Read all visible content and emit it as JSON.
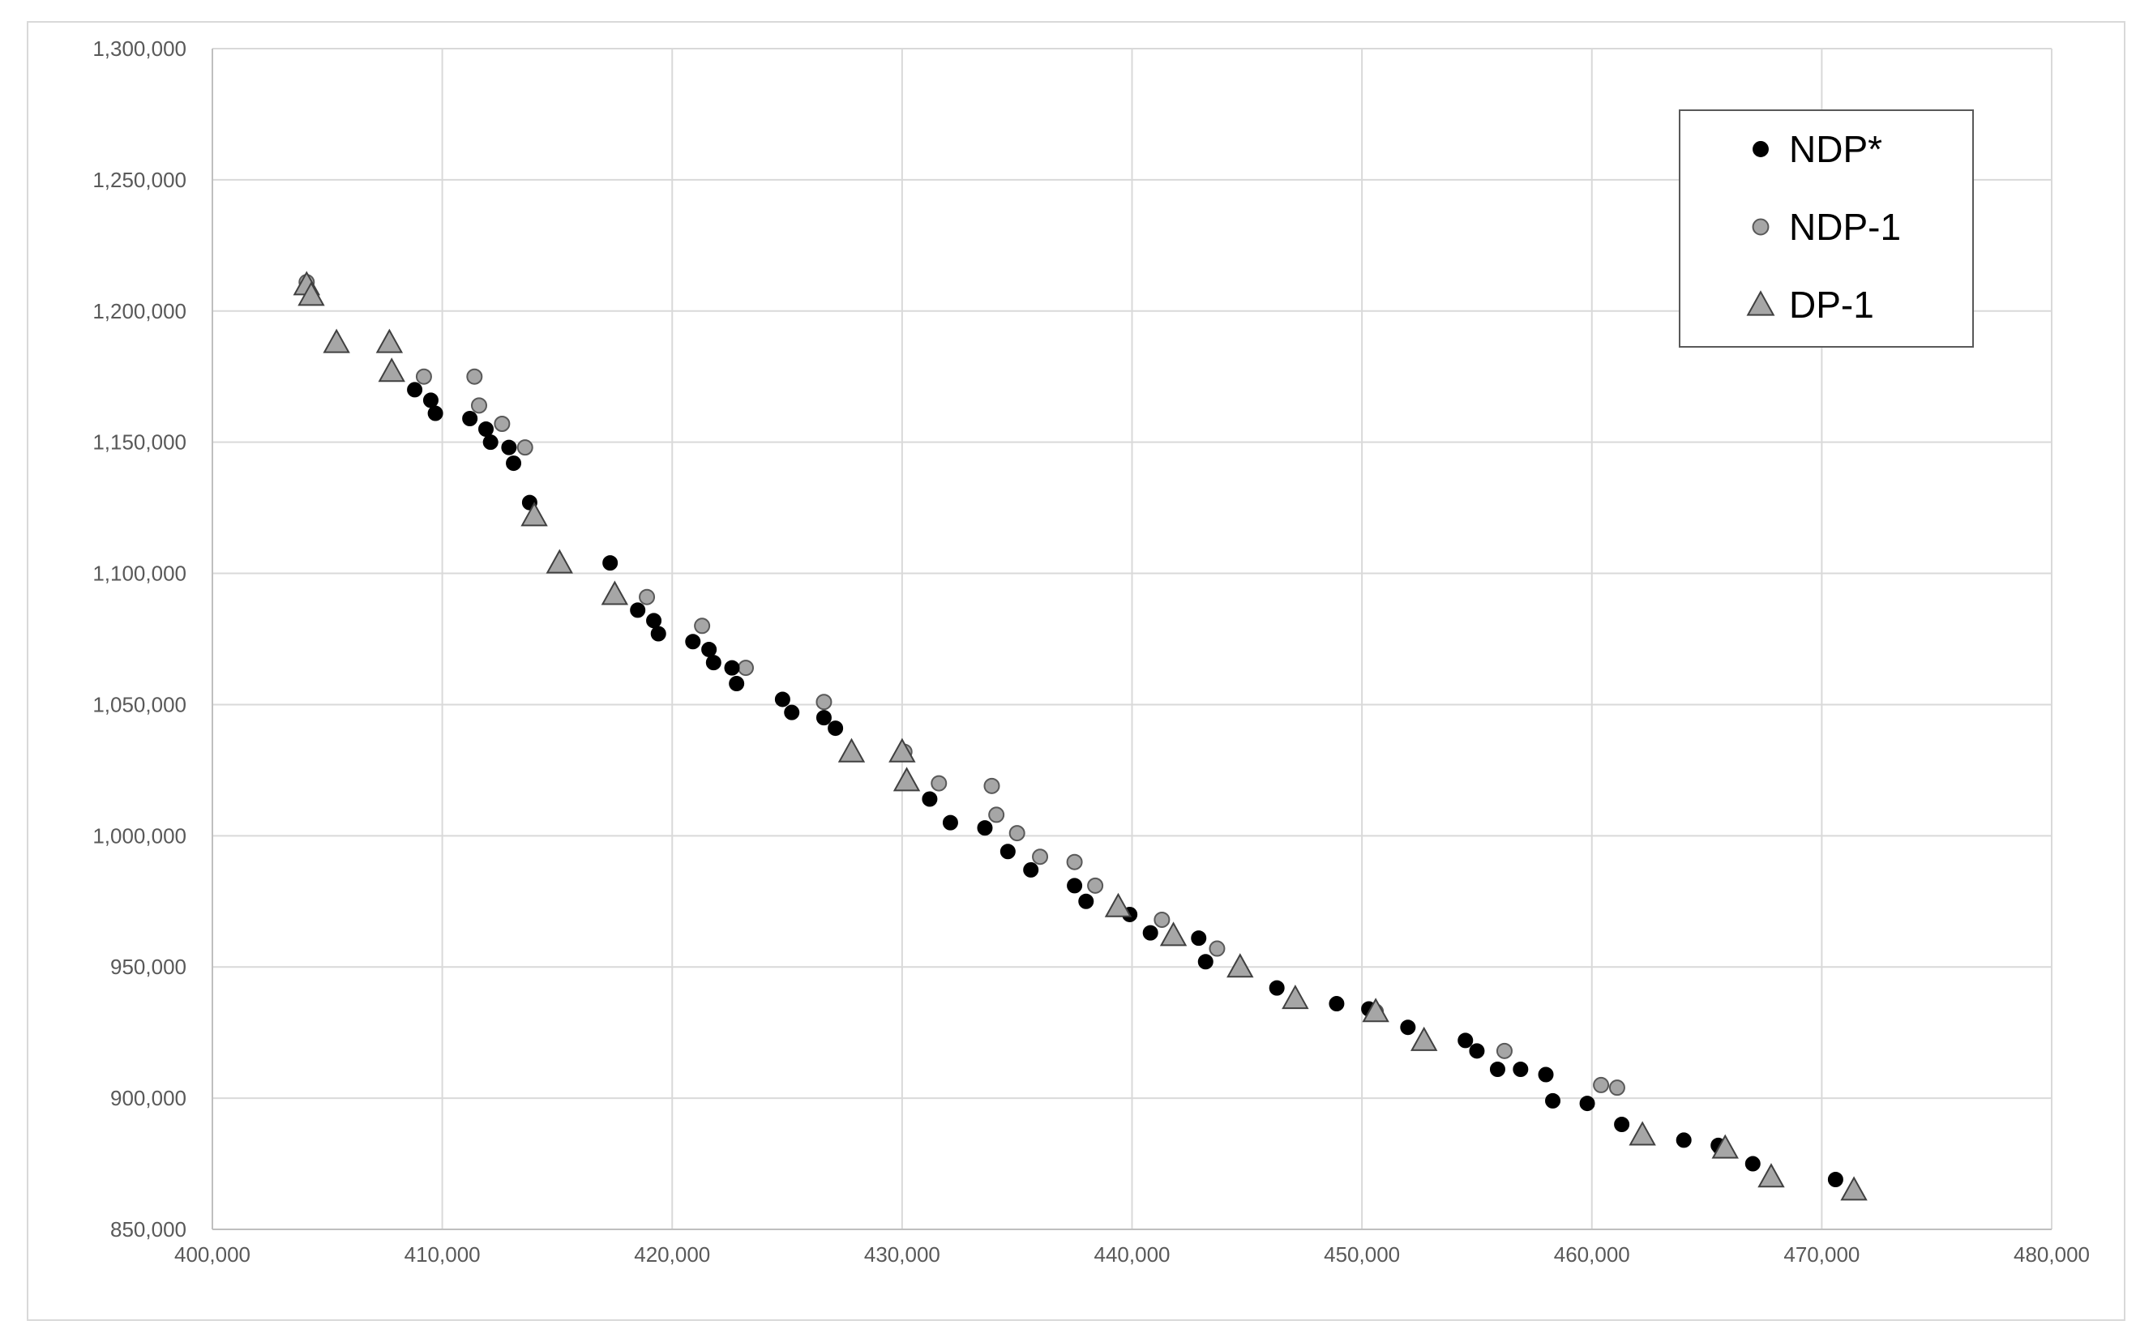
{
  "chart_data": {
    "type": "scatter",
    "title": "",
    "xlabel": "",
    "ylabel": "",
    "xlim": [
      400000,
      480000
    ],
    "ylim": [
      850000,
      1300000
    ],
    "x_ticks": [
      400000,
      410000,
      420000,
      430000,
      440000,
      450000,
      460000,
      470000,
      480000
    ],
    "y_ticks": [
      850000,
      900000,
      950000,
      1000000,
      1050000,
      1100000,
      1150000,
      1200000,
      1250000,
      1300000
    ],
    "x_tick_labels": [
      "400,000",
      "410,000",
      "420,000",
      "430,000",
      "440,000",
      "450,000",
      "460,000",
      "470,000",
      "480,000"
    ],
    "y_tick_labels": [
      "850,000",
      "900,000",
      "950,000",
      "1,000,000",
      "1,050,000",
      "1,100,000",
      "1,150,000",
      "1,200,000",
      "1,250,000",
      "1,300,000"
    ],
    "grid": true,
    "legend_position": "top-right",
    "series": [
      {
        "name": "NDP*",
        "marker": "circle",
        "color": "#000000",
        "points": [
          [
            408800,
            1170000
          ],
          [
            409500,
            1166000
          ],
          [
            409700,
            1161000
          ],
          [
            411200,
            1159000
          ],
          [
            411900,
            1155000
          ],
          [
            412100,
            1150000
          ],
          [
            412900,
            1148000
          ],
          [
            413100,
            1142000
          ],
          [
            413800,
            1127000
          ],
          [
            417300,
            1104000
          ],
          [
            418500,
            1086000
          ],
          [
            419200,
            1082000
          ],
          [
            419400,
            1077000
          ],
          [
            420900,
            1074000
          ],
          [
            421600,
            1071000
          ],
          [
            421800,
            1066000
          ],
          [
            422600,
            1064000
          ],
          [
            422800,
            1058000
          ],
          [
            424800,
            1052000
          ],
          [
            425200,
            1047000
          ],
          [
            426600,
            1045000
          ],
          [
            427100,
            1041000
          ],
          [
            431200,
            1014000
          ],
          [
            432100,
            1005000
          ],
          [
            433600,
            1003000
          ],
          [
            434600,
            994000
          ],
          [
            435600,
            987000
          ],
          [
            437500,
            981000
          ],
          [
            438000,
            975000
          ],
          [
            439900,
            970000
          ],
          [
            440800,
            963000
          ],
          [
            442900,
            961000
          ],
          [
            443200,
            952000
          ],
          [
            446300,
            942000
          ],
          [
            448900,
            936000
          ],
          [
            450300,
            934000
          ],
          [
            452000,
            927000
          ],
          [
            454500,
            922000
          ],
          [
            455000,
            918000
          ],
          [
            455900,
            911000
          ],
          [
            456900,
            911000
          ],
          [
            458000,
            909000
          ],
          [
            458300,
            899000
          ],
          [
            459800,
            898000
          ],
          [
            461300,
            890000
          ],
          [
            464000,
            884000
          ],
          [
            465500,
            882000
          ],
          [
            467000,
            875000
          ],
          [
            470600,
            869000
          ]
        ]
      },
      {
        "name": "NDP-1",
        "marker": "circle",
        "color": "#a6a6a6",
        "points": [
          [
            404100,
            1211000
          ],
          [
            409200,
            1175000
          ],
          [
            411400,
            1175000
          ],
          [
            411600,
            1164000
          ],
          [
            412600,
            1157000
          ],
          [
            413600,
            1148000
          ],
          [
            418900,
            1091000
          ],
          [
            421300,
            1080000
          ],
          [
            423200,
            1064000
          ],
          [
            426600,
            1051000
          ],
          [
            430100,
            1032000
          ],
          [
            431600,
            1020000
          ],
          [
            433900,
            1019000
          ],
          [
            434100,
            1008000
          ],
          [
            435000,
            1001000
          ],
          [
            436000,
            992000
          ],
          [
            437500,
            990000
          ],
          [
            438400,
            981000
          ],
          [
            441300,
            968000
          ],
          [
            443700,
            957000
          ],
          [
            450600,
            933000
          ],
          [
            456200,
            918000
          ],
          [
            460400,
            905000
          ],
          [
            461100,
            904000
          ],
          [
            465600,
            881000
          ]
        ]
      },
      {
        "name": "DP-1",
        "marker": "triangle",
        "color": "#a6a6a6",
        "points": [
          [
            404100,
            1210000
          ],
          [
            404300,
            1206000
          ],
          [
            405400,
            1188000
          ],
          [
            407700,
            1188000
          ],
          [
            407800,
            1177000
          ],
          [
            414000,
            1122000
          ],
          [
            415100,
            1104000
          ],
          [
            417500,
            1092000
          ],
          [
            427800,
            1032000
          ],
          [
            430000,
            1032000
          ],
          [
            430200,
            1021000
          ],
          [
            439400,
            973000
          ],
          [
            441800,
            962000
          ],
          [
            444700,
            950000
          ],
          [
            447100,
            938000
          ],
          [
            450600,
            933000
          ],
          [
            452700,
            922000
          ],
          [
            462200,
            886000
          ],
          [
            465800,
            881000
          ],
          [
            467800,
            870000
          ],
          [
            471400,
            865000
          ]
        ]
      }
    ]
  }
}
